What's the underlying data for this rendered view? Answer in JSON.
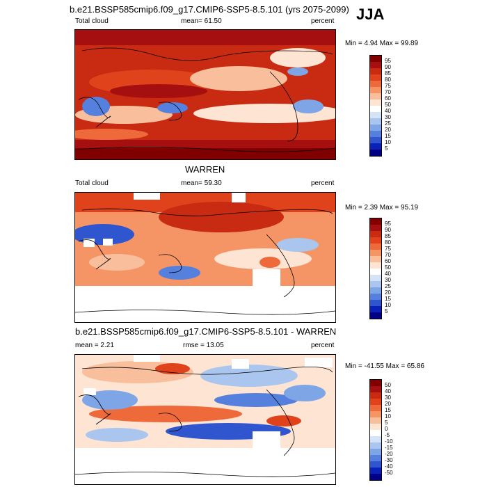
{
  "main_title": "b.e21.BSSP585cmip6.f09_g17.CMIP6-SSP5-8.5.101 (yrs 2075-2099)",
  "season": "JJA",
  "panels": [
    {
      "title": "",
      "left": "Total cloud",
      "center": "mean=  61.50",
      "right": "percent",
      "minmax": "Min =   4.94 Max =  99.89",
      "levels": [
        "95",
        "90",
        "85",
        "80",
        "75",
        "70",
        "60",
        "50",
        "40",
        "30",
        "25",
        "20",
        "15",
        "10",
        "5"
      ]
    },
    {
      "title": "WARREN",
      "left": "Total cloud",
      "center": "mean=  59.30",
      "right": "percent",
      "minmax": "Min =   2.39 Max =  95.19",
      "levels": [
        "95",
        "90",
        "85",
        "80",
        "75",
        "70",
        "60",
        "50",
        "40",
        "30",
        "25",
        "20",
        "15",
        "10",
        "5"
      ]
    },
    {
      "title": "b.e21.BSSP585cmip6.f09_g17.CMIP6-SSP5-8.5.101 - WARREN",
      "left": "mean =   2.21",
      "center": "rmse =  13.05",
      "right": "percent",
      "minmax": "Min = -41.55 Max =  65.86",
      "levels": [
        "50",
        "40",
        "30",
        "20",
        "15",
        "10",
        "5",
        "0",
        "-5",
        "-10",
        "-15",
        "-20",
        "-30",
        "-40",
        "-50"
      ]
    }
  ],
  "colors": {
    "scale": [
      "#800000",
      "#a50f0f",
      "#c82a12",
      "#e0431c",
      "#ef6a3a",
      "#f59566",
      "#f9bf9d",
      "#fde4d3",
      "#ffffff",
      "#d4e3f7",
      "#aac6ef",
      "#7ea6e6",
      "#5580dd",
      "#2f55cf",
      "#0a21b8",
      "#000084"
    ]
  }
}
